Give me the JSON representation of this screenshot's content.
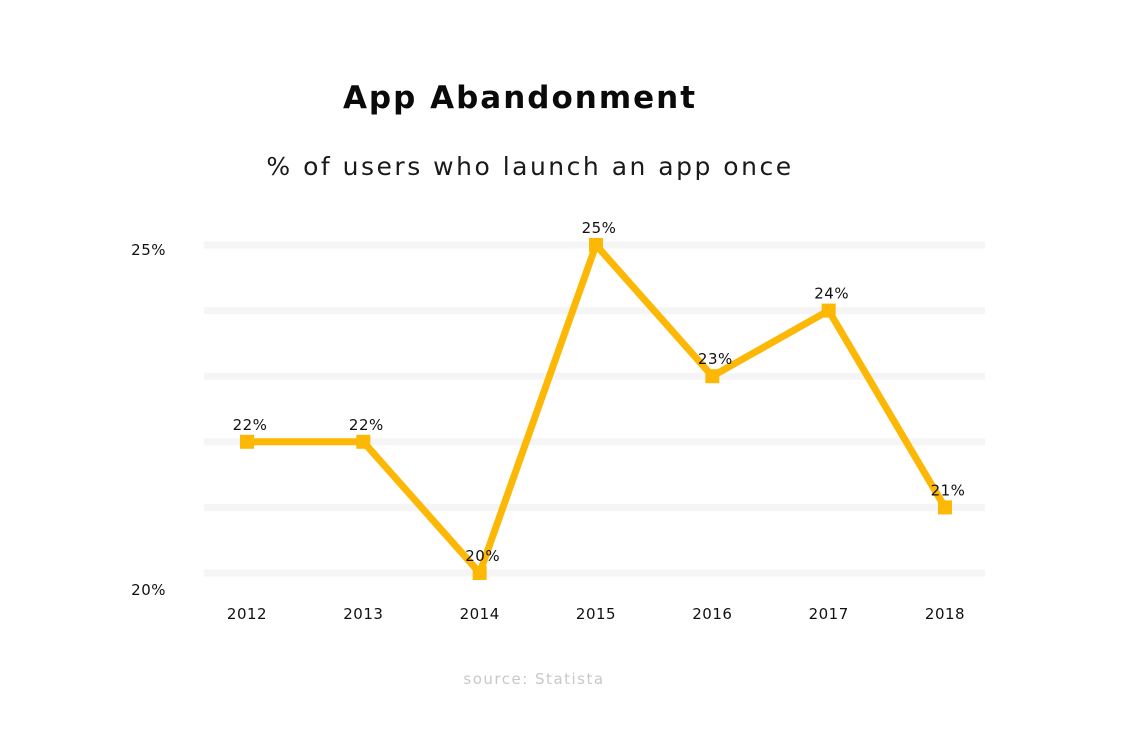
{
  "colors": {
    "line": "#fdb705",
    "grid": "#f5f5f5",
    "text": "#111111",
    "source": "#c8c8c8"
  },
  "source": "source: Statista",
  "chart_data": {
    "type": "line",
    "title": "App Abandonment",
    "subtitle": "% of users who launch an app once",
    "xlabel": "",
    "ylabel": "",
    "categories": [
      "2012",
      "2013",
      "2014",
      "2015",
      "2016",
      "2017",
      "2018"
    ],
    "series": [
      {
        "values": [
          22,
          22,
          20,
          25,
          23,
          24,
          21
        ],
        "labels": [
          "22%",
          "22%",
          "20%",
          "25%",
          "23%",
          "24%",
          "21%"
        ],
        "marker": "square"
      }
    ],
    "ylim": [
      20,
      25
    ],
    "y_tick_labels": [
      "20%",
      "25%"
    ],
    "y_tick_values": [
      20,
      25
    ],
    "grid": true,
    "grid_lines": 6,
    "legend": "none"
  }
}
